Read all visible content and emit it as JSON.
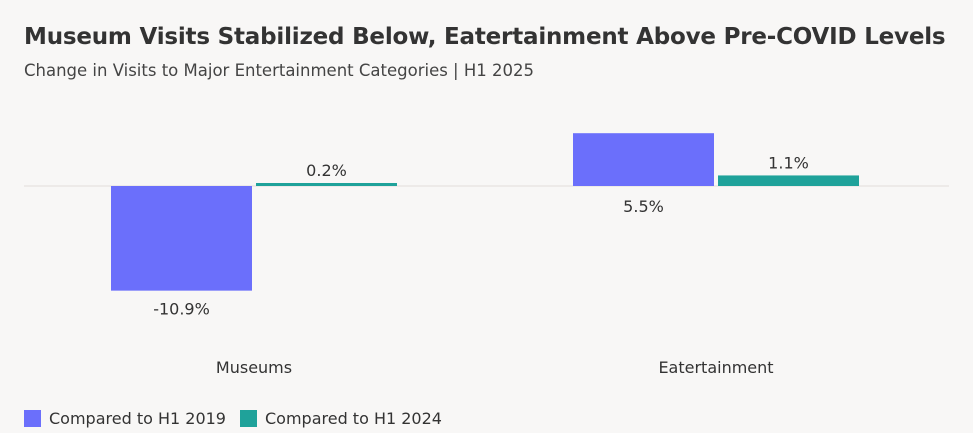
{
  "title": "Museum Visits Stabilized Below, Eatertainment Above Pre-COVID Levels",
  "subtitle": "Change in Visits to Major Entertainment Categories | H1 2025",
  "colors": {
    "series_2019": "#6b6ffb",
    "series_2024": "#1fa29a",
    "zero_line": "#e9e6e4",
    "text": "#333333"
  },
  "chart_data": {
    "type": "bar",
    "categories": [
      "Museums",
      "Eatertainment"
    ],
    "series": [
      {
        "name": "Compared to H1 2019",
        "values": [
          -10.9,
          5.5
        ],
        "labels": [
          "-10.9%",
          "5.5%"
        ]
      },
      {
        "name": "Compared to H1 2024",
        "values": [
          0.2,
          1.1
        ],
        "labels": [
          "0.2%",
          "1.1%"
        ]
      }
    ],
    "title": "Museum Visits Stabilized Below, Eatertainment Above Pre-COVID Levels",
    "subtitle": "Change in Visits to Major Entertainment Categories | H1 2025",
    "legend_position": "bottom-left",
    "grid": false
  }
}
